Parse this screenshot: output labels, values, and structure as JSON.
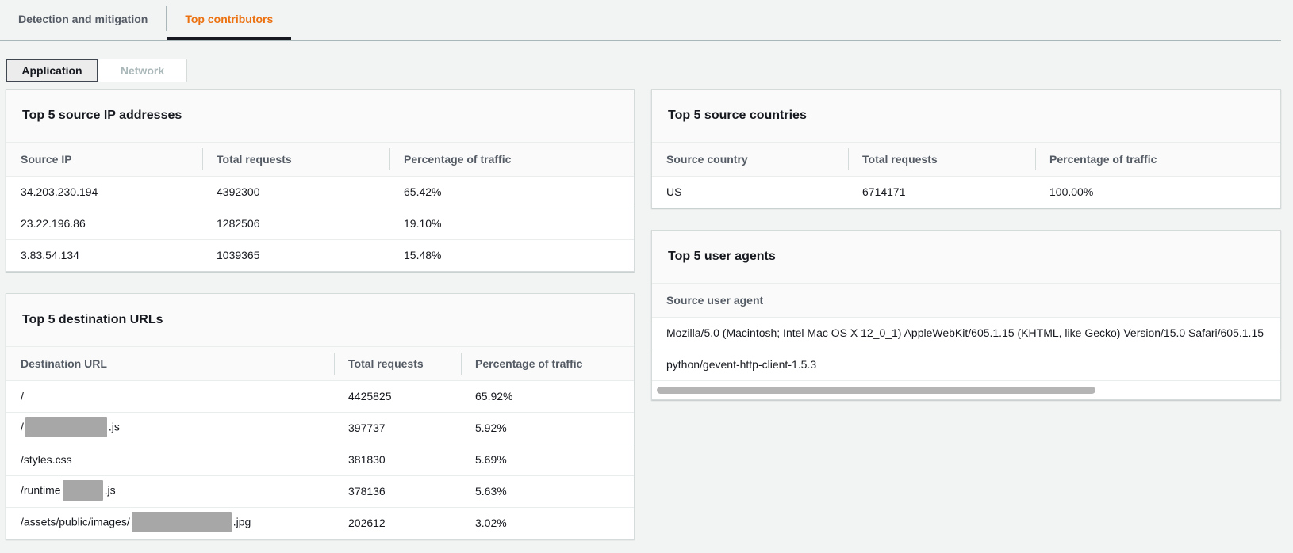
{
  "tabs": {
    "items": [
      {
        "label": "Detection and mitigation",
        "active": false
      },
      {
        "label": "Top contributors",
        "active": true
      }
    ]
  },
  "view_toggle": {
    "items": [
      {
        "label": "Application",
        "active": true
      },
      {
        "label": "Network",
        "active": false
      }
    ]
  },
  "panels": {
    "source_ips": {
      "title": "Top 5 source IP addresses",
      "columns": [
        "Source IP",
        "Total requests",
        "Percentage of traffic"
      ],
      "rows": [
        [
          "34.203.230.194",
          "4392300",
          "65.42%"
        ],
        [
          "23.22.196.86",
          "1282506",
          "19.10%"
        ],
        [
          "3.83.54.134",
          "1039365",
          "15.48%"
        ]
      ]
    },
    "source_countries": {
      "title": "Top 5 source countries",
      "columns": [
        "Source country",
        "Total requests",
        "Percentage of traffic"
      ],
      "rows": [
        [
          "US",
          "6714171",
          "100.00%"
        ]
      ]
    },
    "destination_urls": {
      "title": "Top 5 destination URLs",
      "columns": [
        "Destination URL",
        "Total requests",
        "Percentage of traffic"
      ],
      "rows": [
        [
          [
            {
              "text": "/"
            }
          ],
          "4425825",
          "65.92%"
        ],
        [
          [
            {
              "text": "/"
            },
            {
              "redact": 103
            },
            {
              "text": ".js"
            }
          ],
          "397737",
          "5.92%"
        ],
        [
          [
            {
              "text": "/styles.css"
            }
          ],
          "381830",
          "5.69%"
        ],
        [
          [
            {
              "text": "/runtime"
            },
            {
              "redact": 51
            },
            {
              "text": ".js"
            }
          ],
          "378136",
          "5.63%"
        ],
        [
          [
            {
              "text": "/assets/public/images/"
            },
            {
              "redact": 126
            },
            {
              "text": ".jpg"
            }
          ],
          "202612",
          "3.02%"
        ]
      ]
    },
    "user_agents": {
      "title": "Top 5 user agents",
      "columns": [
        "Source user agent"
      ],
      "rows": [
        [
          "Mozilla/5.0 (Macintosh; Intel Mac OS X 12_0_1) AppleWebKit/605.1.15 (KHTML, like Gecko) Version/15.0 Safari/605.1.15"
        ],
        [
          "python/gevent-http-client-1.5.3"
        ]
      ]
    }
  },
  "colors": {
    "tab_active_text": "#ec7211",
    "tab_active_underline": "#16191f",
    "page_background": "#f2f3f3",
    "redaction_gray": "#a7a7a7",
    "scrollbar_thumb": "#b5b5b5"
  }
}
